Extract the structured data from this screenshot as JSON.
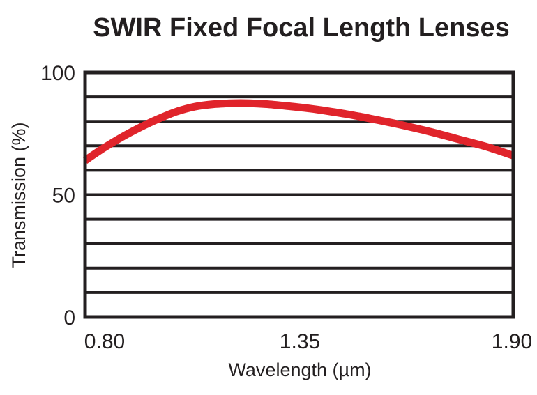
{
  "chart_data": {
    "type": "line",
    "title": "SWIR Fixed Focal Length Lenses",
    "xlabel": "Wavelength (µm)",
    "ylabel": "Transmission (%)",
    "xlim": [
      0.75,
      1.92
    ],
    "ylim": [
      0,
      100
    ],
    "x_ticks": [
      "0.80",
      "1.35",
      "1.90"
    ],
    "y_ticks": [
      "0",
      "50",
      "100"
    ],
    "grid": true,
    "series": [
      {
        "color": "#e0242b",
        "x": [
          0.75,
          0.8,
          0.85,
          0.9,
          0.95,
          1.0,
          1.05,
          1.1,
          1.15,
          1.2,
          1.25,
          1.3,
          1.35,
          1.4,
          1.45,
          1.5,
          1.55,
          1.6,
          1.65,
          1.7,
          1.75,
          1.8,
          1.85,
          1.92
        ],
        "y": [
          64,
          69,
          73.5,
          77.5,
          81,
          84,
          86,
          87,
          87.4,
          87.4,
          87,
          86.3,
          85.5,
          84.5,
          83.3,
          82,
          80.5,
          79,
          77.3,
          75.5,
          73.5,
          71.5,
          69.5,
          66
        ]
      }
    ]
  }
}
